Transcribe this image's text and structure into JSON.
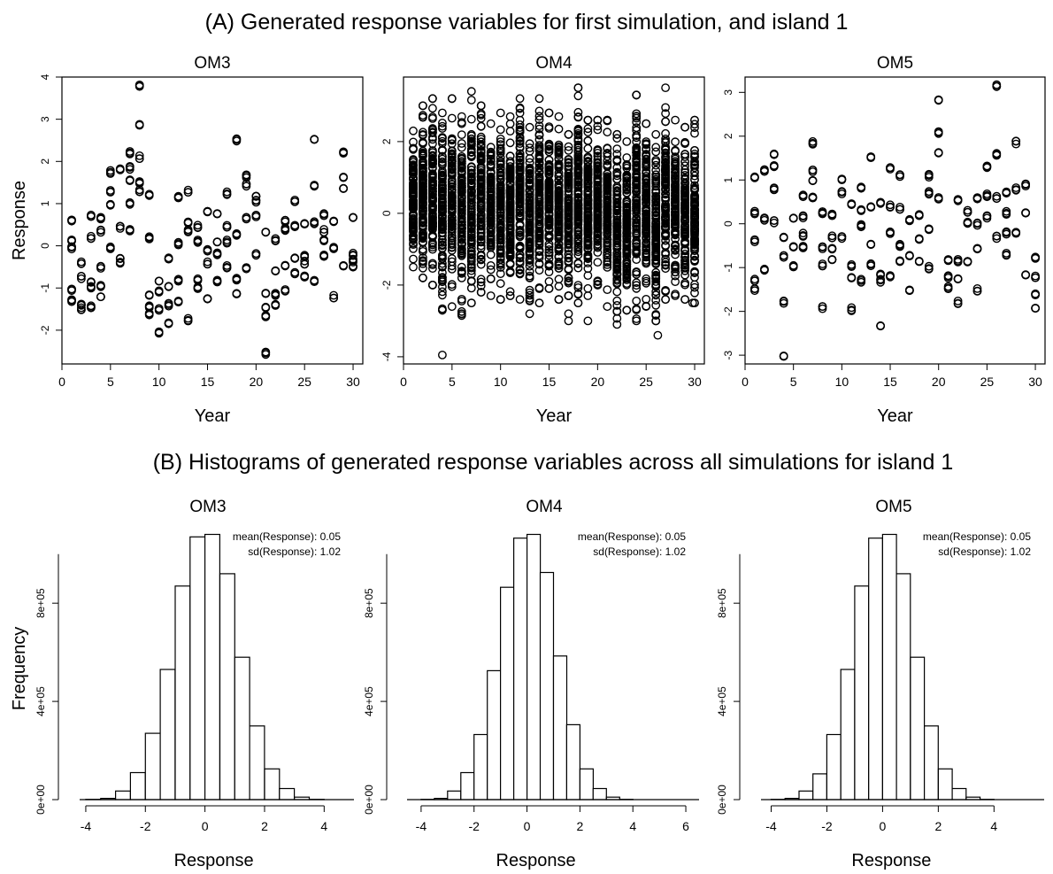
{
  "figure": {
    "section_a_title": "(A) Generated response variables for first simulation, and island 1",
    "section_b_title": "(B) Histograms of generated response variables across all simulations for island 1"
  },
  "chart_data": [
    {
      "type": "scatter",
      "title": "OM3",
      "xlabel": "Year",
      "ylabel": "Response",
      "xlim": [
        0,
        31
      ],
      "ylim": [
        -2.8,
        4.0
      ],
      "xticks": [
        0,
        5,
        10,
        15,
        20,
        25,
        30
      ],
      "yticks": [
        -2,
        -1,
        0,
        1,
        2,
        3,
        4
      ],
      "marker": "open-circle",
      "points_per_year": 3,
      "year_values": [
        [
          0.6,
          0.1,
          -0.05,
          -1.05,
          -1.3
        ],
        [
          -0.4,
          -0.75,
          -1.4,
          -1.5
        ],
        [
          0.7,
          0.2,
          -0.85,
          -1.0,
          -1.45
        ],
        [
          0.65,
          0.35,
          -0.5,
          -0.95,
          -1.2
        ],
        [
          1.75,
          1.3,
          1.0,
          -0.05
        ],
        [
          1.8,
          0.45,
          -0.3,
          -0.4
        ],
        [
          2.2,
          1.85,
          1.55,
          1.0,
          0.35
        ],
        [
          3.8,
          2.85,
          2.1,
          1.5,
          1.3
        ],
        [
          1.2,
          0.2,
          -1.2,
          -1.45,
          -1.6
        ],
        [
          -0.85,
          -1.1,
          -1.5,
          -2.05
        ],
        [
          -0.3,
          -0.95,
          -1.4,
          -1.85
        ],
        [
          1.15,
          0.05,
          -0.8,
          -1.3
        ],
        [
          1.3,
          0.55,
          0.35,
          -1.75
        ],
        [
          0.45,
          0.1,
          -0.8,
          -1.0
        ],
        [
          0.8,
          -0.1,
          -0.4,
          -1.25
        ],
        [
          0.75,
          0.1,
          -0.2,
          -0.85
        ],
        [
          1.25,
          0.45,
          0.1,
          -0.5
        ],
        [
          2.5,
          0.25,
          -0.8,
          -1.15
        ],
        [
          1.65,
          1.45,
          0.65,
          -0.55
        ],
        [
          1.2,
          1.05,
          0.7,
          -0.2
        ],
        [
          0.3,
          -1.1,
          -1.45,
          -1.65,
          -2.55
        ],
        [
          0.15,
          -0.6,
          -1.15,
          -1.4
        ],
        [
          0.6,
          0.4,
          -0.5,
          -1.05
        ],
        [
          1.05,
          0.45,
          -0.3,
          -0.65
        ],
        [
          0.55,
          -0.25,
          -0.4,
          -0.75
        ],
        [
          2.5,
          1.4,
          0.55,
          -0.85
        ],
        [
          0.75,
          0.35,
          0.15,
          -0.25
        ],
        [
          0.55,
          -0.05,
          -1.2
        ],
        [
          2.2,
          1.65,
          1.35,
          -0.45
        ],
        [
          0.7,
          -0.2,
          -0.35,
          -0.5
        ]
      ]
    },
    {
      "type": "scatter",
      "title": "OM4",
      "xlabel": "Year",
      "ylabel": "",
      "xlim": [
        0,
        31
      ],
      "ylim": [
        -4.2,
        3.8
      ],
      "xticks": [
        0,
        5,
        10,
        15,
        20,
        25,
        30
      ],
      "yticks": [
        -4,
        -2,
        0,
        2
      ],
      "marker": "open-circle",
      "points_per_year": 30,
      "year_ranges": [
        [
          -1.5,
          2.3
        ],
        [
          -1.8,
          3.0
        ],
        [
          -2.0,
          3.2
        ],
        [
          -2.7,
          2.8
        ],
        [
          -2.6,
          3.2
        ],
        [
          -2.8,
          2.7
        ],
        [
          -2.5,
          3.4
        ],
        [
          -2.2,
          3.0
        ],
        [
          -2.3,
          2.5
        ],
        [
          -2.4,
          2.8
        ],
        [
          -2.3,
          2.7
        ],
        [
          -2.4,
          3.2
        ],
        [
          -2.8,
          2.4
        ],
        [
          -2.5,
          3.2
        ],
        [
          -2.1,
          2.8
        ],
        [
          -2.4,
          2.7
        ],
        [
          -2.3,
          2.2
        ],
        [
          -2.5,
          3.5
        ],
        [
          -2.3,
          2.6
        ],
        [
          -2.0,
          2.6
        ],
        [
          -2.6,
          2.6
        ],
        [
          -3.1,
          2.2
        ],
        [
          -2.7,
          2.0
        ],
        [
          -3.0,
          3.3
        ],
        [
          -2.6,
          2.5
        ],
        [
          -3.0,
          2.2
        ],
        [
          -2.4,
          3.5
        ],
        [
          -2.3,
          2.6
        ],
        [
          -2.4,
          2.4
        ],
        [
          -2.5,
          2.6
        ]
      ],
      "outliers": [
        [
          4.0,
          -3.95
        ],
        [
          6.0,
          -2.85
        ],
        [
          17.0,
          -2.8
        ],
        [
          17.0,
          -3.0
        ],
        [
          19.0,
          -3.0
        ],
        [
          26.2,
          -3.4
        ],
        [
          29.8,
          -2.5
        ]
      ]
    },
    {
      "type": "scatter",
      "title": "OM5",
      "xlabel": "Year",
      "ylabel": "",
      "xlim": [
        0,
        31
      ],
      "ylim": [
        -3.2,
        3.35
      ],
      "xticks": [
        0,
        5,
        10,
        15,
        20,
        25,
        30
      ],
      "yticks": [
        -3,
        -2,
        -1,
        0,
        1,
        2,
        3
      ],
      "marker": "open-circle",
      "points_per_year": 3,
      "year_values": [
        [
          1.05,
          0.25,
          -0.4,
          -1.3,
          -1.5
        ],
        [
          1.2,
          0.1,
          -1.05
        ],
        [
          1.6,
          1.3,
          0.8,
          0.05
        ],
        [
          -0.3,
          -0.75,
          -1.8,
          -3.0
        ],
        [
          0.1,
          -0.5,
          -0.95
        ],
        [
          0.65,
          0.15,
          -0.25,
          -0.55
        ],
        [
          1.85,
          1.2,
          0.95,
          0.6
        ],
        [
          0.25,
          -0.55,
          -0.95,
          -1.9
        ],
        [
          0.2,
          -0.3,
          -0.55,
          -0.8
        ],
        [
          1.0,
          0.7,
          -0.3
        ],
        [
          0.45,
          -0.95,
          -1.25,
          -1.95
        ],
        [
          0.8,
          0.3,
          -0.05,
          -1.3
        ],
        [
          1.5,
          0.4,
          -0.5,
          -0.95
        ],
        [
          0.5,
          -1.15,
          -1.3,
          -2.35
        ],
        [
          1.25,
          0.4,
          -0.2,
          -1.2
        ],
        [
          1.1,
          0.35,
          -0.5,
          -0.85
        ],
        [
          0.1,
          -0.7,
          -1.55
        ],
        [
          0.2,
          -0.35,
          -0.85
        ],
        [
          1.1,
          0.7,
          -0.15,
          -1.0
        ],
        [
          2.8,
          2.1,
          1.65,
          0.6
        ],
        [
          -0.85,
          -1.2,
          -1.45
        ],
        [
          0.55,
          -0.85,
          -1.25,
          -1.8
        ],
        [
          0.3,
          0.0,
          -0.85
        ],
        [
          0.6,
          0.0,
          -0.55,
          -1.5
        ],
        [
          1.3,
          0.65,
          0.15
        ],
        [
          3.15,
          1.6,
          0.6,
          -0.3
        ],
        [
          0.7,
          0.25,
          -0.2,
          -0.7
        ],
        [
          1.85,
          0.8,
          -0.2
        ],
        [
          0.9,
          0.25,
          -1.2
        ],
        [
          -0.8,
          -1.2,
          -1.6,
          -1.9
        ]
      ]
    },
    {
      "type": "bar",
      "title": "OM3",
      "xlabel": "Response",
      "ylabel": "Frequency",
      "xlim": [
        -4.8,
        5.0
      ],
      "ylim": [
        0,
        1100000
      ],
      "xticks": [
        -4,
        -2,
        0,
        2,
        4
      ],
      "yticks": [
        0,
        400000,
        800000
      ],
      "ytick_labels": [
        "0e+00",
        "4e+05",
        "8e+05"
      ],
      "bin_edges": [
        -4.0,
        -3.5,
        -3.0,
        -2.5,
        -2.0,
        -1.5,
        -1.0,
        -0.5,
        0.0,
        0.5,
        1.0,
        1.5,
        2.0,
        2.5,
        3.0,
        3.5,
        4.0
      ],
      "counts": [
        1000,
        5000,
        35000,
        110000,
        270000,
        530000,
        870000,
        1070000,
        1080000,
        920000,
        580000,
        300000,
        125000,
        45000,
        10000,
        1000
      ],
      "stats": [
        "mean(Response): 0.05",
        "sd(Response): 1.02"
      ]
    },
    {
      "type": "bar",
      "title": "OM4",
      "xlabel": "Response",
      "ylabel": "",
      "xlim": [
        -5.2,
        6.5
      ],
      "ylim": [
        0,
        1100000
      ],
      "xticks": [
        -4,
        -2,
        0,
        2,
        4,
        6
      ],
      "yticks": [
        0,
        400000,
        800000
      ],
      "ytick_labels": [
        "0e+00",
        "4e+05",
        "8e+05"
      ],
      "bin_edges": [
        -4.0,
        -3.5,
        -3.0,
        -2.5,
        -2.0,
        -1.5,
        -1.0,
        -0.5,
        0.0,
        0.5,
        1.0,
        1.5,
        2.0,
        2.5,
        3.0,
        3.5,
        4.0
      ],
      "counts": [
        1000,
        5000,
        35000,
        110000,
        265000,
        525000,
        865000,
        1065000,
        1080000,
        925000,
        585000,
        305000,
        125000,
        45000,
        10000,
        1000
      ],
      "stats": [
        "mean(Response): 0.05",
        "sd(Response): 1.02"
      ]
    },
    {
      "type": "bar",
      "title": "OM5",
      "xlabel": "Response",
      "ylabel": "",
      "xlim": [
        -5.0,
        5.8
      ],
      "ylim": [
        0,
        1100000
      ],
      "xticks": [
        -4,
        -2,
        0,
        2,
        4
      ],
      "yticks": [
        0,
        400000,
        800000
      ],
      "ytick_labels": [
        "0e+00",
        "4e+05",
        "8e+05"
      ],
      "bin_edges": [
        -4.0,
        -3.5,
        -3.0,
        -2.5,
        -2.0,
        -1.5,
        -1.0,
        -0.5,
        0.0,
        0.5,
        1.0,
        1.5,
        2.0,
        2.5,
        3.0,
        3.5,
        4.0
      ],
      "counts": [
        1000,
        5000,
        35000,
        105000,
        265000,
        530000,
        870000,
        1065000,
        1080000,
        920000,
        580000,
        300000,
        125000,
        45000,
        10000,
        1000
      ],
      "stats": [
        "mean(Response): 0.05",
        "sd(Response): 1.02"
      ]
    }
  ]
}
